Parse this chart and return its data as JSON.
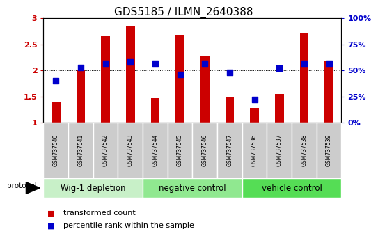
{
  "title": "GDS5185 / ILMN_2640388",
  "samples": [
    "GSM737540",
    "GSM737541",
    "GSM737542",
    "GSM737543",
    "GSM737544",
    "GSM737545",
    "GSM737546",
    "GSM737547",
    "GSM737536",
    "GSM737537",
    "GSM737538",
    "GSM737539"
  ],
  "bar_values": [
    1.4,
    2.0,
    2.65,
    2.85,
    1.47,
    2.68,
    2.27,
    1.5,
    1.28,
    1.55,
    2.72,
    2.17
  ],
  "dot_values": [
    40,
    53,
    57,
    58,
    57,
    46,
    57,
    48,
    22,
    52,
    57,
    57
  ],
  "bar_color": "#cc0000",
  "dot_color": "#0000cc",
  "ylim_left": [
    1.0,
    3.0
  ],
  "ylim_right": [
    0,
    100
  ],
  "yticks_left": [
    1.0,
    1.5,
    2.0,
    2.5,
    3.0
  ],
  "yticks_right": [
    0,
    25,
    50,
    75,
    100
  ],
  "ytick_labels_left": [
    "1",
    "1.5",
    "2",
    "2.5",
    "3"
  ],
  "ytick_labels_right": [
    "0%",
    "25%",
    "50%",
    "75%",
    "100%"
  ],
  "groups": [
    {
      "label": "Wig-1 depletion",
      "start": 0,
      "end": 3,
      "color": "#c8f0c8"
    },
    {
      "label": "negative control",
      "start": 4,
      "end": 7,
      "color": "#90e890"
    },
    {
      "label": "vehicle control",
      "start": 8,
      "end": 11,
      "color": "#55dd55"
    }
  ],
  "protocol_label": "protocol",
  "legend_bar_label": "transformed count",
  "legend_dot_label": "percentile rank within the sample",
  "bar_color_hex": "#cc0000",
  "dot_color_hex": "#0000cc",
  "bar_width": 0.35,
  "dot_size": 35,
  "background_color": "#ffffff",
  "plot_bg_color": "#ffffff",
  "sample_box_color": "#cccccc",
  "group_label_fontsize": 8.5,
  "sample_fontsize": 5.5,
  "tick_fontsize": 8,
  "title_fontsize": 11,
  "legend_fontsize": 8
}
